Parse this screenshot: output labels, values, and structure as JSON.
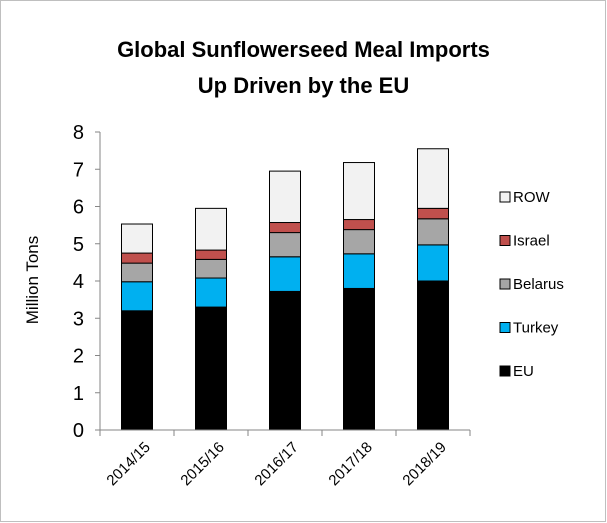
{
  "chart_data": {
    "type": "bar",
    "stacked": true,
    "title_lines": [
      "Global Sunflowerseed Meal Imports",
      "Up Driven by the EU"
    ],
    "xlabel": "",
    "ylabel": "Million Tons",
    "ylim": [
      0,
      8
    ],
    "yticks": [
      0,
      1,
      2,
      3,
      4,
      5,
      6,
      7,
      8
    ],
    "grid": false,
    "legend_position": "right",
    "categories": [
      "2014/15",
      "2015/16",
      "2016/17",
      "2017/18",
      "2018/19"
    ],
    "series": [
      {
        "name": "EU",
        "color": "#000000",
        "values": [
          3.2,
          3.3,
          3.72,
          3.8,
          4.0
        ]
      },
      {
        "name": "Turkey",
        "color": "#00b0f0",
        "values": [
          0.78,
          0.78,
          0.93,
          0.93,
          0.97
        ]
      },
      {
        "name": "Belarus",
        "color": "#a6a6a6",
        "values": [
          0.5,
          0.5,
          0.65,
          0.65,
          0.7
        ]
      },
      {
        "name": "Israel",
        "color": "#c0504d",
        "values": [
          0.27,
          0.25,
          0.27,
          0.27,
          0.28
        ]
      },
      {
        "name": "ROW",
        "color": "#f2f2f2",
        "values": [
          0.78,
          1.12,
          1.38,
          1.53,
          1.6
        ]
      }
    ],
    "legend_order": [
      "ROW",
      "Israel",
      "Belarus",
      "Turkey",
      "EU"
    ]
  }
}
